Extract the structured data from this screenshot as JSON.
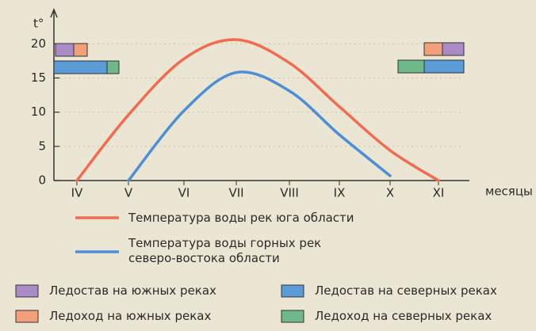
{
  "chart_data": {
    "type": "line",
    "y_label": "t°",
    "x_label": "месяцы",
    "categories": [
      "IV",
      "V",
      "VI",
      "VII",
      "VIII",
      "IX",
      "X",
      "XI"
    ],
    "series": [
      {
        "name": "Температура воды рек юга области",
        "color": "#f26b4f",
        "values": [
          0,
          9.6,
          17.8,
          20.6,
          17.2,
          10.8,
          4.4,
          0
        ]
      },
      {
        "name": "Температура воды горных рек северо-востока области",
        "color": "#4d8fd6",
        "values": [
          null,
          0,
          10.2,
          15.8,
          13.1,
          6.7,
          0.7,
          null
        ]
      }
    ],
    "ylim": [
      0,
      22
    ],
    "yticks": [
      0,
      5,
      10,
      15,
      20
    ],
    "ice_legend": [
      {
        "label": "Ледостав на южных реках",
        "color": "#a98bc6"
      },
      {
        "label": "Ледоход на южных реках",
        "color": "#f3a07a"
      },
      {
        "label": "Ледостав на северных реках",
        "color": "#5b9bd8"
      },
      {
        "label": "Ледоход на северных реках",
        "color": "#6fb88a"
      }
    ]
  }
}
